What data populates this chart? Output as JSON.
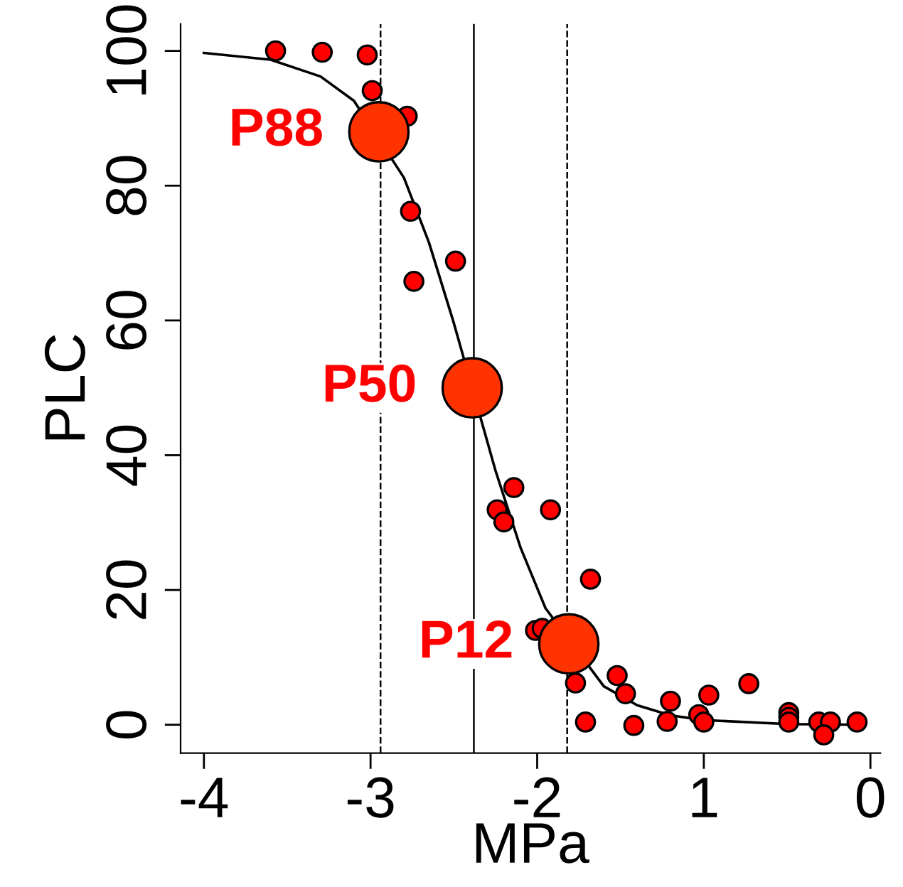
{
  "chart_data": {
    "type": "scatter",
    "xlabel": "MPa",
    "ylabel": "PLC",
    "xlim": [
      -4.14,
      0.06
    ],
    "ylim": [
      -4.2,
      104
    ],
    "xticks": [
      -4,
      -3,
      -2,
      {
        "value": -1,
        "label": "1"
      },
      0
    ],
    "yticks": [
      0,
      20,
      40,
      60,
      80,
      100
    ],
    "grid": false,
    "marker": "circle",
    "series": [
      {
        "type": "line",
        "color": "#000000",
        "line_style": "solid",
        "marker": "none",
        "x": [
          -4,
          -3.6,
          -3.3,
          -3.1,
          -2.8,
          -2.65,
          -2.5,
          -2.25,
          -2.1,
          -1.95,
          -1.6,
          -1.4,
          -1.2,
          -1.0,
          -0.5,
          -0.05
        ],
        "values": [
          99.7,
          98.7,
          96.2,
          92.6,
          81.2,
          71.6,
          59.6,
          37.7,
          26.3,
          17.3,
          5.7,
          2.9,
          1.4,
          0.7,
          0.1,
          0
        ]
      },
      {
        "color": "#ff0000",
        "x": [
          -3.57,
          -3.29,
          -3.02,
          -2.99,
          -2.78,
          -2.76,
          -2.49,
          -2.74,
          -2.14,
          -2.24,
          -2.2,
          -1.92,
          -1.68,
          -2.01,
          -1.97,
          -1.77,
          -1.52,
          -1.47,
          -1.71,
          -1.42,
          -1.2,
          -1.22,
          -1.03,
          -1.0,
          -0.97,
          -0.73,
          -0.49,
          -0.49,
          -0.49,
          -0.31,
          -0.24,
          -0.28,
          -0.08
        ],
        "values": [
          100,
          99.8,
          99.4,
          94.1,
          90.3,
          76.2,
          68.8,
          65.8,
          35.2,
          31.9,
          30.1,
          31.9,
          21.6,
          14,
          14.3,
          6.2,
          7.3,
          4.6,
          0.4,
          -0.1,
          3.5,
          0.5,
          1.5,
          0.4,
          4.4,
          6.1,
          1.8,
          1.1,
          0.4,
          0.4,
          0.4,
          -1.5,
          0.4
        ]
      },
      {
        "color": "#ff3300",
        "x": [
          -2.95,
          -2.39,
          -1.81
        ],
        "values": [
          88,
          50,
          12
        ]
      }
    ],
    "ref_lines": [
      {
        "axis": "x",
        "value": -2.94,
        "line_style": "dashed",
        "color": "#000000"
      },
      {
        "axis": "x",
        "value": -2.38,
        "line_style": "solid",
        "color": "#000000"
      },
      {
        "axis": "x",
        "value": -1.82,
        "line_style": "dashed",
        "color": "#000000"
      }
    ],
    "annotations": [
      {
        "text": "P88",
        "x": -2.95,
        "y": 88
      },
      {
        "text": "P50",
        "x": -2.39,
        "y": 50
      },
      {
        "text": "P12",
        "x": -1.81,
        "y": 12
      }
    ]
  }
}
